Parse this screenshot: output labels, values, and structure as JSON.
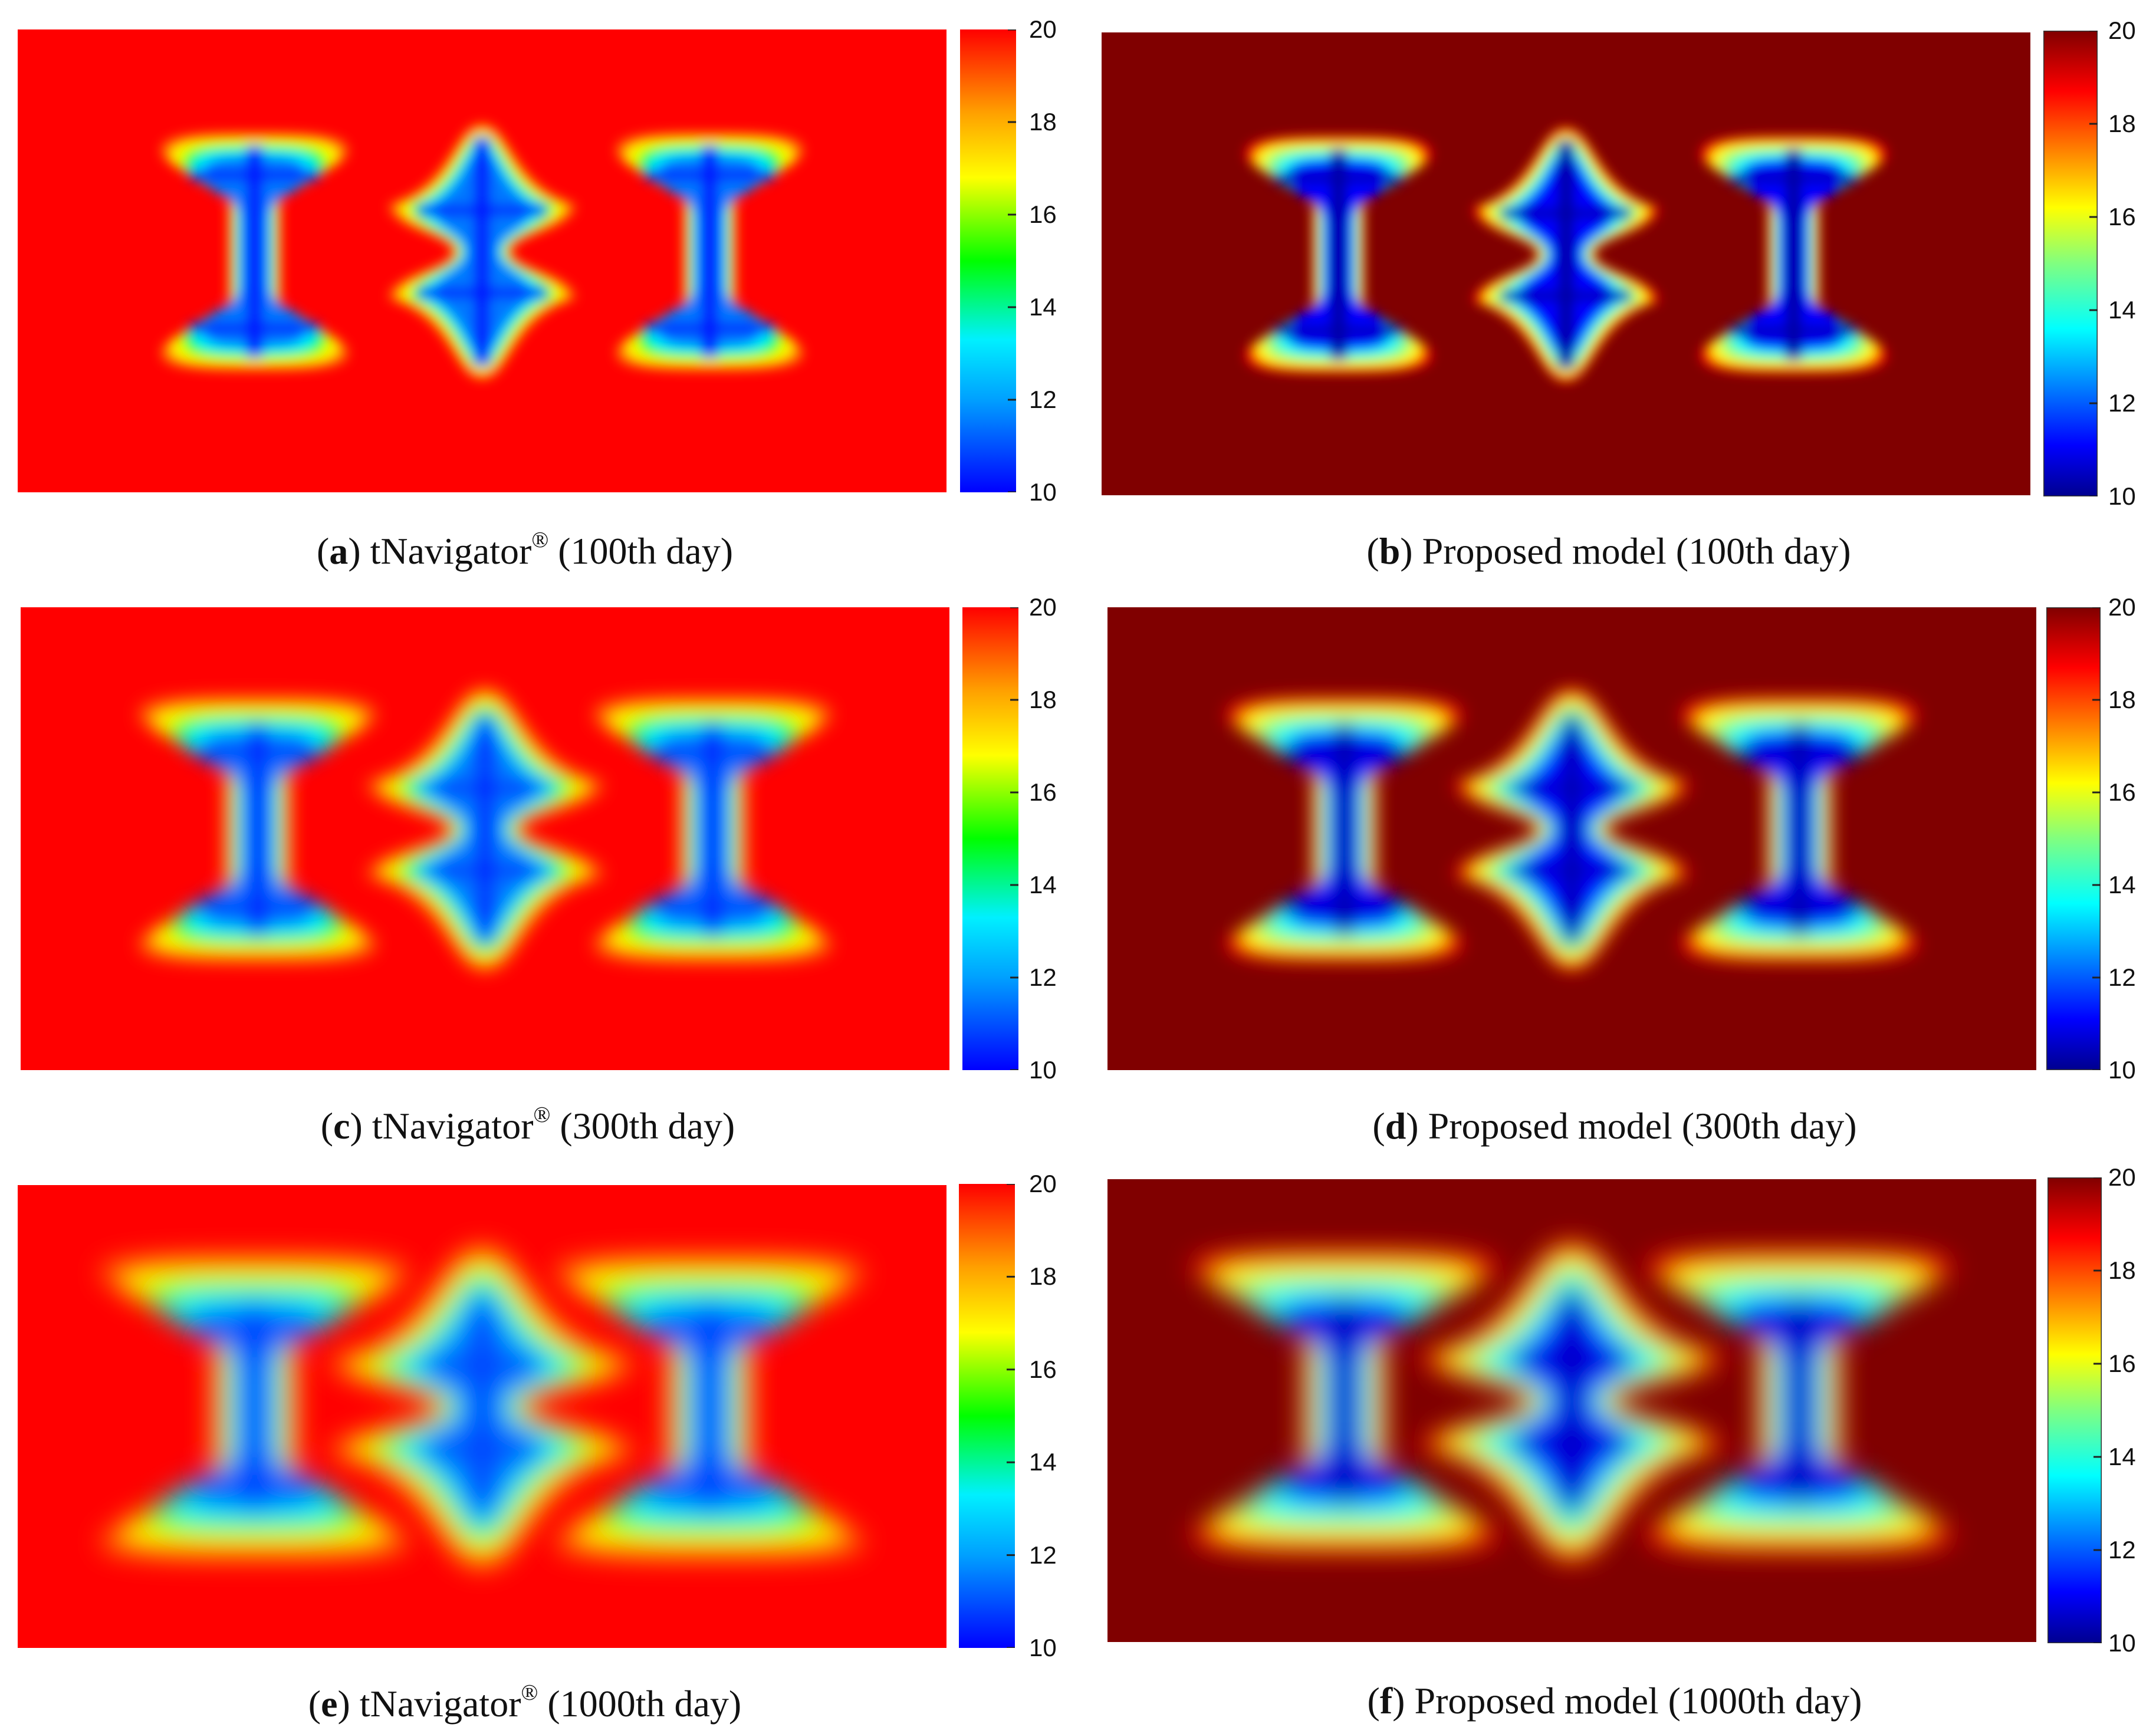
{
  "chart_data": [
    {
      "type": "heatmap",
      "panel": "a",
      "prefix": "(",
      "letter": "a",
      "suffix": ") ",
      "label_before": "tNavigator",
      "mark": "®",
      "label_after": " (100th day)",
      "colormap": "jet-light",
      "colorbar": {
        "min": 10,
        "max": 20,
        "ticks": [
          "10",
          "12",
          "14",
          "16",
          "18",
          "20"
        ]
      },
      "day": 100,
      "well_patterns": [
        "I",
        "double-cross",
        "I"
      ]
    },
    {
      "type": "heatmap",
      "panel": "b",
      "prefix": "(",
      "letter": "b",
      "suffix": ") ",
      "label_before": "Proposed model (100th day)",
      "mark": "",
      "label_after": "",
      "colormap": "jet",
      "colorbar": {
        "min": 10,
        "max": 20,
        "ticks": [
          "10",
          "12",
          "14",
          "16",
          "18",
          "20"
        ]
      },
      "day": 100,
      "well_patterns": [
        "I",
        "double-cross",
        "I"
      ]
    },
    {
      "type": "heatmap",
      "panel": "c",
      "prefix": "(",
      "letter": "c",
      "suffix": ") ",
      "label_before": "tNavigator",
      "mark": "®",
      "label_after": " (300th day)",
      "colormap": "jet-light",
      "colorbar": {
        "min": 10,
        "max": 20,
        "ticks": [
          "10",
          "12",
          "14",
          "16",
          "18",
          "20"
        ]
      },
      "day": 300,
      "well_patterns": [
        "I",
        "double-cross",
        "I"
      ]
    },
    {
      "type": "heatmap",
      "panel": "d",
      "prefix": "(",
      "letter": "d",
      "suffix": ") ",
      "label_before": "Proposed model (300th day)",
      "mark": "",
      "label_after": "",
      "colormap": "jet",
      "colorbar": {
        "min": 10,
        "max": 20,
        "ticks": [
          "10",
          "12",
          "14",
          "16",
          "18",
          "20"
        ]
      },
      "day": 300,
      "well_patterns": [
        "I",
        "double-cross",
        "I"
      ]
    },
    {
      "type": "heatmap",
      "panel": "e",
      "prefix": "(",
      "letter": "e",
      "suffix": ") ",
      "label_before": "tNavigator",
      "mark": "®",
      "label_after": " (1000th day)",
      "colormap": "jet-light",
      "colorbar": {
        "min": 10,
        "max": 20,
        "ticks": [
          "10",
          "12",
          "14",
          "16",
          "18",
          "20"
        ]
      },
      "day": 1000,
      "well_patterns": [
        "I",
        "double-cross",
        "I"
      ]
    },
    {
      "type": "heatmap",
      "panel": "f",
      "prefix": "(",
      "letter": "f",
      "suffix": ") ",
      "label_before": "Proposed model (1000th day)",
      "mark": "",
      "label_after": "",
      "colormap": "jet",
      "colorbar": {
        "min": 10,
        "max": 20,
        "ticks": [
          "10",
          "12",
          "14",
          "16",
          "18",
          "20"
        ]
      },
      "day": 1000,
      "well_patterns": [
        "I",
        "double-cross",
        "I"
      ]
    }
  ]
}
